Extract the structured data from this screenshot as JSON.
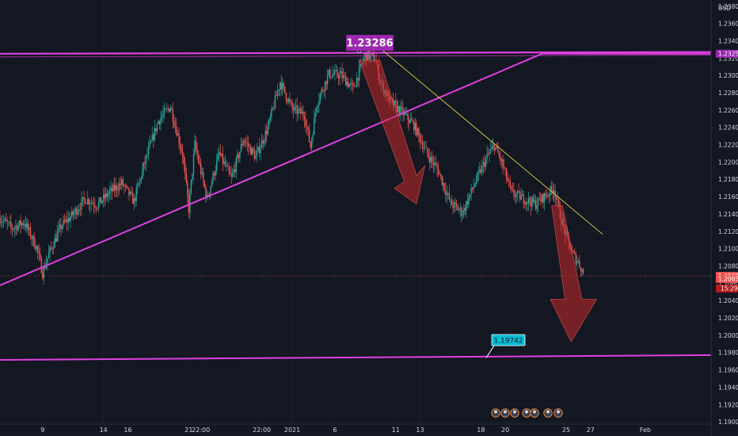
{
  "chart_data": {
    "type": "candlestick",
    "currency": "USD",
    "ylim": [
      1.18978,
      1.2383
    ],
    "yticks": [
      "1.19000",
      "1.19200",
      "1.19400",
      "1.19600",
      "1.19800",
      "1.20000",
      "1.20200",
      "1.20400",
      "1.20600",
      "1.20800",
      "1.21000",
      "1.21200",
      "1.21400",
      "1.21600",
      "1.21800",
      "1.22000",
      "1.22200",
      "1.22400",
      "1.22600",
      "1.22800",
      "1.23000",
      "1.23200",
      "1.23400",
      "1.23600",
      "1.23800"
    ],
    "xticks": [
      {
        "label": "9",
        "pos": 0.5
      },
      {
        "label": "14",
        "pos": 5.5
      },
      {
        "label": "16",
        "pos": 7.5
      },
      {
        "label": "21",
        "pos": 12.5
      },
      {
        "label": "22:00",
        "pos": 13.5
      },
      {
        "label": "22:00",
        "pos": 18.5
      },
      {
        "label": "2021",
        "pos": 21
      },
      {
        "label": "6",
        "pos": 24.5
      },
      {
        "label": "11",
        "pos": 29.5
      },
      {
        "label": "13",
        "pos": 31.5
      },
      {
        "label": "18",
        "pos": 36.5
      },
      {
        "label": "20",
        "pos": 38.5
      },
      {
        "label": "25",
        "pos": 43.5
      },
      {
        "label": "27",
        "pos": 45.5
      },
      {
        "label": "Feb",
        "pos": 50
      }
    ],
    "xdomain": [
      -3,
      55.4
    ],
    "price_anchors": [
      [
        -3,
        1.2136
      ],
      [
        -2,
        1.2124
      ],
      [
        -1,
        1.2131
      ],
      [
        0,
        1.2102
      ],
      [
        0.5,
        1.2072
      ],
      [
        1,
        1.2094
      ],
      [
        2,
        1.2126
      ],
      [
        3,
        1.214
      ],
      [
        4,
        1.2158
      ],
      [
        5,
        1.2151
      ],
      [
        6,
        1.2165
      ],
      [
        7,
        1.2176
      ],
      [
        8,
        1.2155
      ],
      [
        9,
        1.2205
      ],
      [
        10,
        1.2248
      ],
      [
        11,
        1.2265
      ],
      [
        12,
        1.2209
      ],
      [
        12.5,
        1.2146
      ],
      [
        13,
        1.2221
      ],
      [
        14,
        1.2158
      ],
      [
        15,
        1.221
      ],
      [
        16,
        1.2181
      ],
      [
        17,
        1.2227
      ],
      [
        18,
        1.2206
      ],
      [
        19,
        1.224
      ],
      [
        20,
        1.2293
      ],
      [
        21,
        1.2262
      ],
      [
        22,
        1.2255
      ],
      [
        22.5,
        1.2218
      ],
      [
        23,
        1.2268
      ],
      [
        24,
        1.2302
      ],
      [
        25,
        1.2301
      ],
      [
        26,
        1.2285
      ],
      [
        27,
        1.2324
      ],
      [
        27.8,
        1.232
      ],
      [
        28.2,
        1.2295
      ],
      [
        29,
        1.2271
      ],
      [
        30,
        1.2258
      ],
      [
        31,
        1.2243
      ],
      [
        32,
        1.2212
      ],
      [
        33,
        1.219
      ],
      [
        34,
        1.2153
      ],
      [
        35,
        1.2142
      ],
      [
        36,
        1.2176
      ],
      [
        37,
        1.2206
      ],
      [
        37.6,
        1.222
      ],
      [
        38.2,
        1.22
      ],
      [
        39,
        1.2165
      ],
      [
        40,
        1.2158
      ],
      [
        41,
        1.2152
      ],
      [
        42,
        1.2164
      ],
      [
        42.5,
        1.217
      ],
      [
        43,
        1.214
      ],
      [
        43.5,
        1.2115
      ],
      [
        44,
        1.2095
      ],
      [
        44.5,
        1.2085
      ],
      [
        45,
        1.2069
      ]
    ],
    "high_callout": "1.23286",
    "target_callout": "1.19742",
    "price_tags": [
      "1.23255",
      "1.20690",
      "1.20655"
    ],
    "countdown": "15:29",
    "lines": {
      "resistance": {
        "from": [
          -3,
          1.23255
        ],
        "to": [
          55.4,
          1.23275
        ],
        "color": "#e040e0"
      },
      "rising_trendline": {
        "from": [
          -3,
          1.2058
        ],
        "to": [
          41.5,
          1.23255
        ],
        "color": "#e040e0"
      },
      "support": {
        "from": [
          -3,
          1.1972
        ],
        "to": [
          55.4,
          1.19775
        ],
        "color": "#e040e0"
      },
      "descending": {
        "from": [
          28.2,
          1.2332
        ],
        "to": [
          46.5,
          1.2117
        ],
        "color": "#e0d040"
      }
    },
    "colors": {
      "up": "#26a69a",
      "down": "#ef5350",
      "background": "#131722",
      "grid": "#2a2e39",
      "axis_text": "#d1d4dc",
      "accent_magenta": "#9c27b0",
      "target_cyan": "#00bcd4"
    }
  }
}
